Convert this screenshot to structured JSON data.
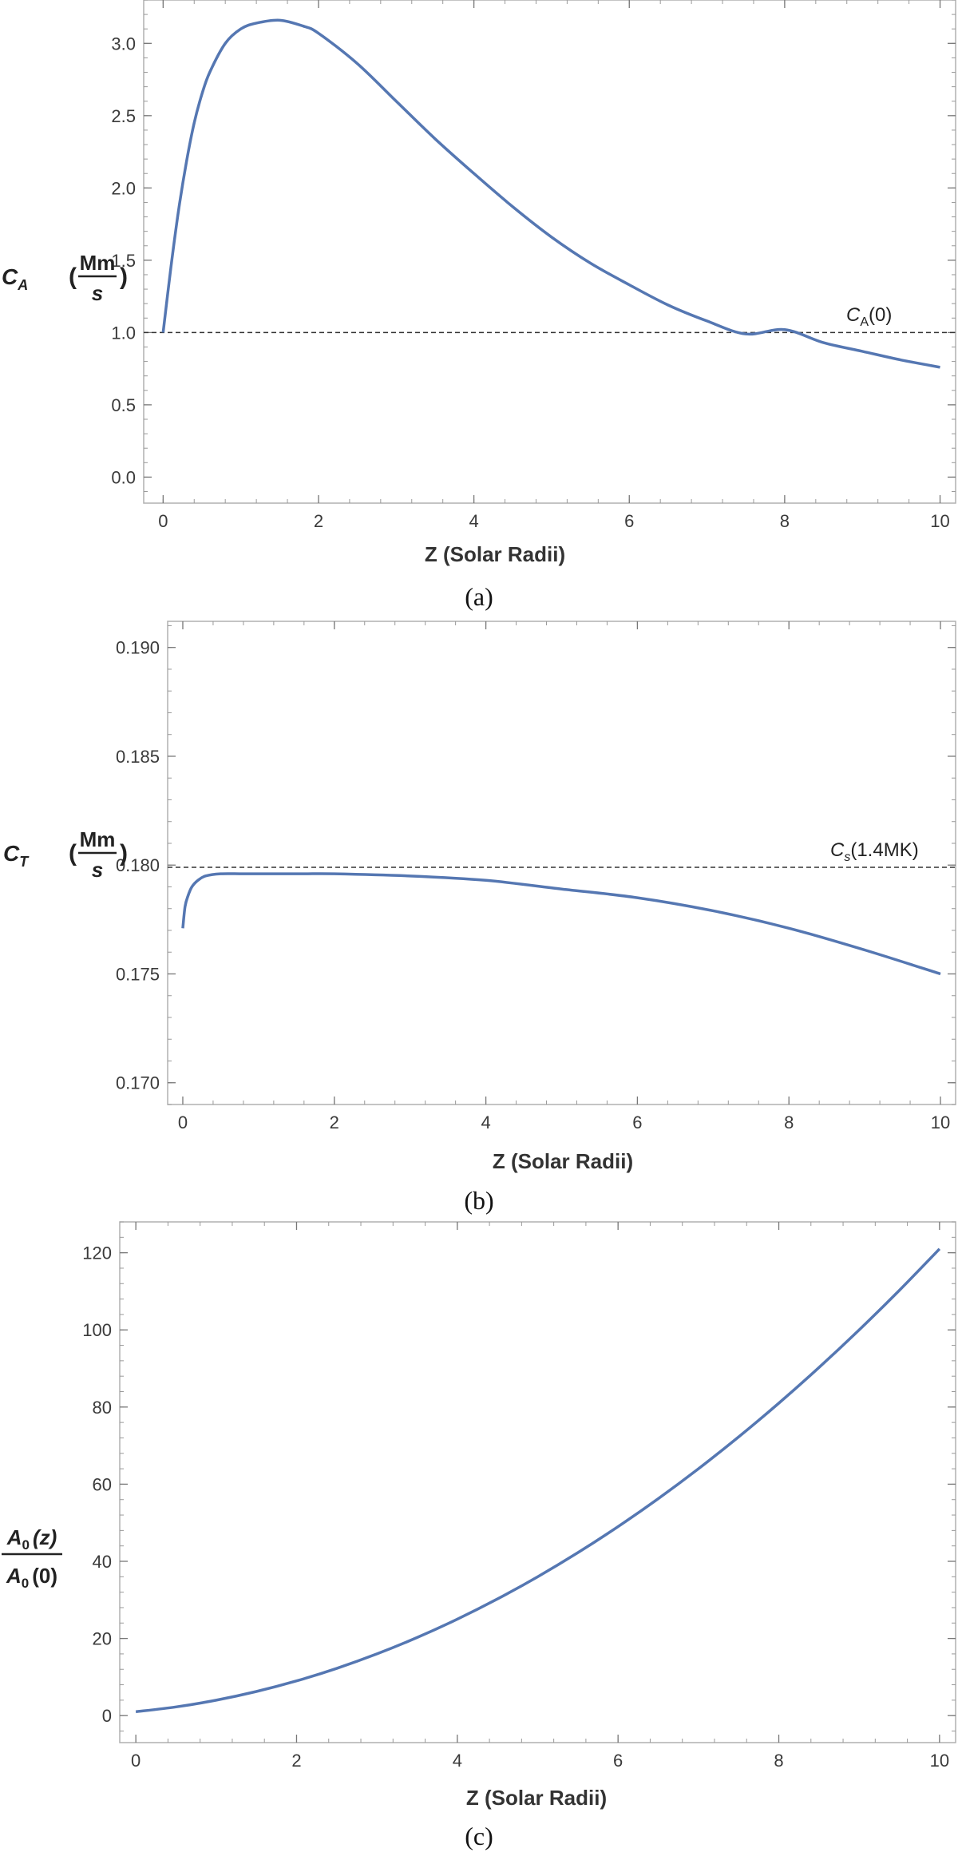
{
  "chart_data": [
    {
      "type": "line",
      "xlabel": "Z (Solar Radii)",
      "ylabel": {
        "symbol": "C",
        "subscript": "A",
        "unit_numerator": "Mm",
        "unit_denominator": "s"
      },
      "caption": "(a)",
      "xlim": [
        -0.25,
        10.2
      ],
      "ylim": [
        -0.18,
        3.3
      ],
      "xticks": [
        0,
        2,
        4,
        6,
        8,
        10
      ],
      "xtick_labels": [
        "0",
        "2",
        "4",
        "6",
        "8",
        "10"
      ],
      "yticks": [
        0.0,
        0.5,
        1.0,
        1.5,
        2.0,
        2.5,
        3.0
      ],
      "ytick_labels": [
        "0.0",
        "0.5",
        "1.0",
        "1.5",
        "2.0",
        "2.5",
        "3.0"
      ],
      "x_minor_step": 0.4,
      "y_minor_step": 0.1,
      "grid": false,
      "line_color": "#5577b2",
      "series": [
        {
          "x": [
            0,
            0.1,
            0.2,
            0.3,
            0.4,
            0.5,
            0.6,
            0.8,
            1.0,
            1.2,
            1.5,
            1.8,
            2.0,
            2.5,
            3.0,
            3.5,
            4.0,
            4.5,
            5.0,
            5.5,
            6.0,
            6.5,
            7.0,
            7.5,
            8.0,
            8.5,
            9.0,
            9.5,
            10.0
          ],
          "y": [
            1.0,
            1.45,
            1.85,
            2.18,
            2.45,
            2.65,
            2.8,
            3.0,
            3.1,
            3.14,
            3.16,
            3.12,
            3.07,
            2.86,
            2.6,
            2.34,
            2.1,
            1.87,
            1.66,
            1.48,
            1.33,
            1.19,
            1.08,
            0.99,
            1.02,
            0.93,
            0.87,
            0.81,
            0.76
          ]
        }
      ],
      "reference_line": {
        "y": 1.0,
        "style": "dashed",
        "label_symbol": "C",
        "label_subscript": "A",
        "label_rest": "(0)"
      }
    },
    {
      "type": "line",
      "xlabel": "Z (Solar Radii)",
      "ylabel": {
        "symbol": "C",
        "subscript": "T",
        "unit_numerator": "Mm",
        "unit_denominator": "s"
      },
      "caption": "(b)",
      "xlim": [
        -0.2,
        10.2
      ],
      "ylim": [
        0.169,
        0.1912
      ],
      "xticks": [
        0,
        2,
        4,
        6,
        8,
        10
      ],
      "xtick_labels": [
        "0",
        "2",
        "4",
        "6",
        "8",
        "10"
      ],
      "yticks": [
        0.17,
        0.175,
        0.18,
        0.185,
        0.19
      ],
      "ytick_labels": [
        "0.170",
        "0.175",
        "0.180",
        "0.185",
        "0.190"
      ],
      "x_minor_step": 0.4,
      "y_minor_step": 0.001,
      "grid": false,
      "line_color": "#5577b2",
      "series": [
        {
          "x": [
            0,
            0.03,
            0.07,
            0.12,
            0.2,
            0.3,
            0.5,
            0.8,
            1.2,
            1.6,
            2.0,
            3.0,
            4.0,
            5.0,
            6.0,
            7.0,
            8.0,
            9.0,
            10.0
          ],
          "y": [
            0.1771,
            0.1781,
            0.1786,
            0.179,
            0.1793,
            0.1795,
            0.1796,
            0.1796,
            0.1796,
            0.1796,
            0.1796,
            0.1795,
            0.1793,
            0.1789,
            0.1785,
            0.1779,
            0.1771,
            0.1761,
            0.175
          ]
        }
      ],
      "reference_line": {
        "y": 0.1799,
        "style": "dashed",
        "label_symbol": "C",
        "label_subscript": "s",
        "label_rest": "(1.4MK)"
      }
    },
    {
      "type": "line",
      "xlabel": "Z (Solar Radii)",
      "ylabel": {
        "numerator_symbol": "A",
        "numerator_subscript": "0",
        "numerator_arg": "(z)",
        "denominator_symbol": "A",
        "denominator_subscript": "0",
        "denominator_arg": "(0)"
      },
      "caption": "(c)",
      "xlim": [
        -0.2,
        10.2
      ],
      "ylim": [
        -7,
        128
      ],
      "xticks": [
        0,
        2,
        4,
        6,
        8,
        10
      ],
      "xtick_labels": [
        "0",
        "2",
        "4",
        "6",
        "8",
        "10"
      ],
      "yticks": [
        0,
        20,
        40,
        60,
        80,
        100,
        120
      ],
      "ytick_labels": [
        "0",
        "20",
        "40",
        "60",
        "80",
        "100",
        "120"
      ],
      "x_minor_step": 0.4,
      "y_minor_step": 4,
      "grid": false,
      "line_color": "#5577b2",
      "series": [
        {
          "x": [
            0,
            0.5,
            1,
            1.5,
            2,
            2.5,
            3,
            3.5,
            4,
            4.5,
            5,
            5.5,
            6,
            6.5,
            7,
            7.5,
            8,
            8.5,
            9,
            9.5,
            10
          ],
          "y": [
            1,
            2.25,
            4,
            6.25,
            9,
            12.25,
            16,
            20.25,
            25,
            30.25,
            36,
            42.25,
            49,
            56.25,
            64,
            72.25,
            81,
            90.25,
            100,
            110.25,
            121
          ]
        }
      ]
    }
  ]
}
